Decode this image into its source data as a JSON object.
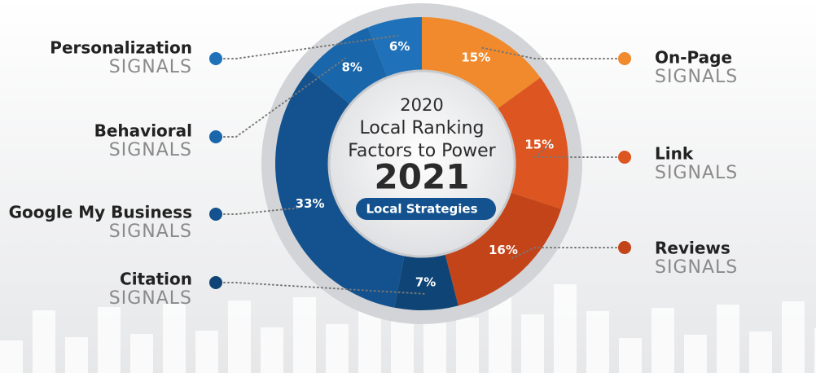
{
  "chart_data": {
    "type": "donut",
    "center_text": [
      "2020",
      "Local Ranking",
      "Factors to Power",
      "2021"
    ],
    "badge": "Local Strategies",
    "label_suffix": "SIGNALS",
    "categories": [
      "On-Page",
      "Link",
      "Reviews",
      "Citation",
      "Google My Business",
      "Behavioral",
      "Personalization"
    ],
    "values": [
      15,
      15,
      16,
      7,
      33,
      8,
      6
    ],
    "value_labels": [
      "15%",
      "15%",
      "16%",
      "7%",
      "33%",
      "8%",
      "6%"
    ],
    "colors": [
      "#f08a2c",
      "#dd5520",
      "#c4441a",
      "#0f4576",
      "#13528e",
      "#1a66aa",
      "#1f72b9"
    ]
  }
}
